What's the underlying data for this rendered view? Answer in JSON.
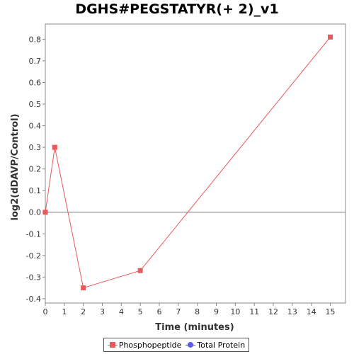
{
  "chart_data": {
    "type": "line",
    "title": "DGHS#PEGSTATYR(+ 2)_v1",
    "xlabel": "Time (minutes)",
    "ylabel": "log2(dDAVP/Control)",
    "xlim": [
      0,
      15.8
    ],
    "ylim": [
      -0.42,
      0.87
    ],
    "xticks": [
      0,
      1,
      2,
      3,
      4,
      5,
      6,
      7,
      8,
      9,
      10,
      11,
      12,
      13,
      14,
      15
    ],
    "yticks": [
      -0.4,
      -0.3,
      -0.2,
      -0.1,
      0.0,
      0.1,
      0.2,
      0.3,
      0.4,
      0.5,
      0.6,
      0.7,
      0.8
    ],
    "ytick_labels": [
      "-0.4",
      "-0.3",
      "-0.2",
      "-0.1",
      "0.0",
      "0.1",
      "0.2",
      "0.3",
      "0.4",
      "0.5",
      "0.6",
      "0.7",
      "0.8"
    ],
    "grid": false,
    "zero_line": true,
    "legend_position": "bottom",
    "series": [
      {
        "name": "Phosphopeptide",
        "color": "#e8595c",
        "marker": "square",
        "x": [
          0,
          0.5,
          2,
          5,
          15
        ],
        "y": [
          0.0,
          0.3,
          -0.35,
          -0.27,
          0.81
        ]
      },
      {
        "name": "Total Protein",
        "color": "#5b5bf0",
        "marker": "circle",
        "x": [],
        "y": []
      }
    ]
  }
}
